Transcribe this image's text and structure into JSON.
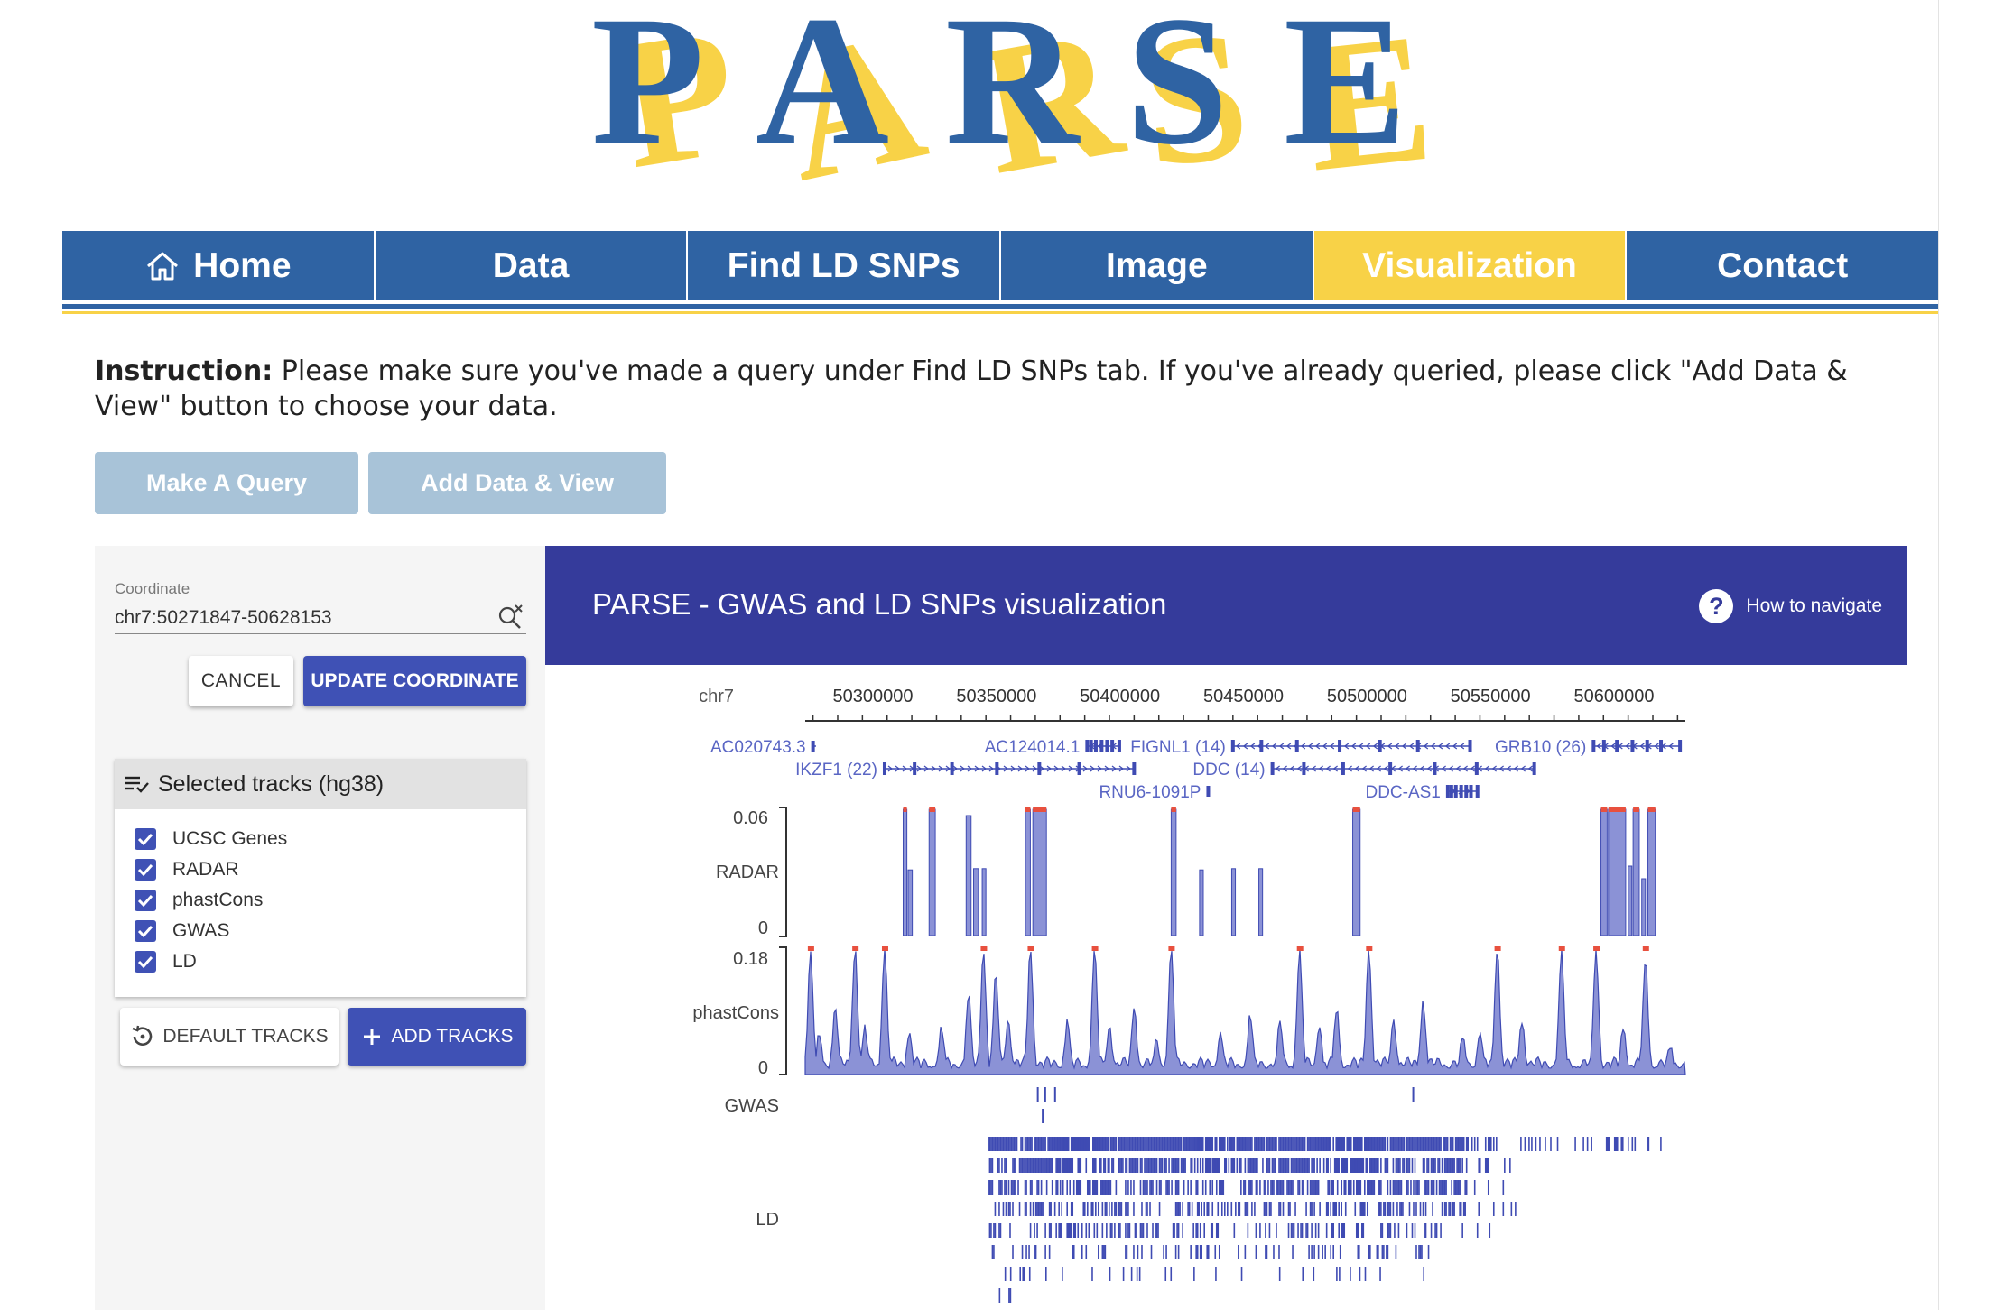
{
  "logo": {
    "letters": [
      "P",
      "A",
      "R",
      "S",
      "E"
    ]
  },
  "nav": {
    "items": [
      {
        "label": "Home",
        "icon": "home-icon",
        "active": false
      },
      {
        "label": "Data",
        "active": false
      },
      {
        "label": "Find LD SNPs",
        "active": false
      },
      {
        "label": "Image",
        "active": false
      },
      {
        "label": "Visualization",
        "active": true
      },
      {
        "label": "Contact",
        "active": false
      }
    ]
  },
  "instruction": {
    "label": "Instruction:",
    "text": " Please make sure you've made a query under Find LD SNPs tab. If you've already queried, please click \"Add Data & View\" button to choose your data."
  },
  "buttons": {
    "make_query": "Make A Query",
    "add_data_view": "Add Data & View"
  },
  "sidebar": {
    "coordinate_label": "Coordinate",
    "coordinate_value": "chr7:50271847-50628153",
    "cancel": "CANCEL",
    "update": "UPDATE COORDINATE",
    "tracks_title": "Selected tracks (hg38)",
    "tracks": [
      "UCSC Genes",
      "RADAR",
      "phastCons",
      "GWAS",
      "LD"
    ],
    "default_tracks": "DEFAULT TRACKS",
    "add_tracks": "ADD TRACKS"
  },
  "viz": {
    "title": "PARSE - GWAS and LD SNPs visualization",
    "help": "How to navigate"
  },
  "browser": {
    "chrom": "chr7",
    "ruler": {
      "range": [
        50271847,
        50628153
      ],
      "ticks": [
        50300000,
        50350000,
        50400000,
        50450000,
        50500000,
        50550000,
        50600000
      ]
    },
    "genes": [
      {
        "name": "AC020743.3",
        "row": 0,
        "start": 50275000,
        "end": 50276200,
        "dir": "+"
      },
      {
        "name": "AC124014.1",
        "row": 0,
        "start": 50386000,
        "end": 50399000,
        "dir": "-"
      },
      {
        "name": "FIGNL1 (14)",
        "row": 0,
        "start": 50445000,
        "end": 50541000,
        "dir": "-"
      },
      {
        "name": "GRB10 (26)",
        "row": 0,
        "start": 50591000,
        "end": 50626000,
        "dir": "-"
      },
      {
        "name": "IKZF1 (22)",
        "row": 1,
        "start": 50304000,
        "end": 50405000,
        "dir": "+"
      },
      {
        "name": "DDC (14)",
        "row": 1,
        "start": 50461000,
        "end": 50567000,
        "dir": "-"
      },
      {
        "name": "RNU6-1091P",
        "row": 2,
        "start": 50435000,
        "end": 50435600,
        "dir": "+"
      },
      {
        "name": "DDC-AS1",
        "row": 2,
        "start": 50532000,
        "end": 50544000,
        "dir": "+"
      }
    ],
    "radar": {
      "label": "RADAR",
      "max_label": "0.06",
      "min_label": "0",
      "max": 0.06
    },
    "phastcons": {
      "label": "phastCons",
      "max_label": "0.18",
      "min_label": "0",
      "max": 0.18
    },
    "gwas": {
      "label": "GWAS"
    },
    "ld": {
      "label": "LD"
    }
  },
  "colors": {
    "nav_blue": "#2f63a3",
    "nav_yellow": "#f8d247",
    "indigo": "#3f51b5",
    "viz_header": "#353b9b",
    "track": "#8b92d6",
    "peak": "#e8503e"
  }
}
